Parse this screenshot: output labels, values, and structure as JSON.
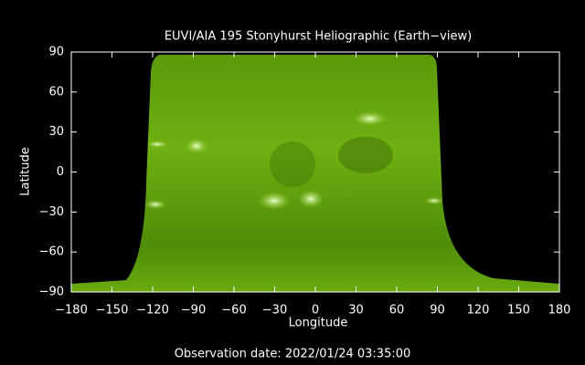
{
  "chart_data": {
    "type": "image",
    "title": "EUVI/AIA 195 Stonyhurst Heliographic (Earth−view)",
    "x_label": "Longitude",
    "y_label": "Latitude",
    "footer": "Observation date: 2022/01/24 03:35:00",
    "xlim": [
      -180,
      180
    ],
    "ylim": [
      -90,
      90
    ],
    "xticks": [
      {
        "value": -180,
        "label": "−180"
      },
      {
        "value": -150,
        "label": "−150"
      },
      {
        "value": -120,
        "label": "−120"
      },
      {
        "value": -90,
        "label": "−90"
      },
      {
        "value": -60,
        "label": "−60"
      },
      {
        "value": -30,
        "label": "−30"
      },
      0,
      30,
      60,
      90,
      120,
      150,
      180
    ],
    "yticks": [
      {
        "value": -90,
        "label": "−90"
      },
      {
        "value": -60,
        "label": "−60"
      },
      {
        "value": -30,
        "label": "−30"
      },
      0,
      30,
      60,
      90
    ]
  }
}
